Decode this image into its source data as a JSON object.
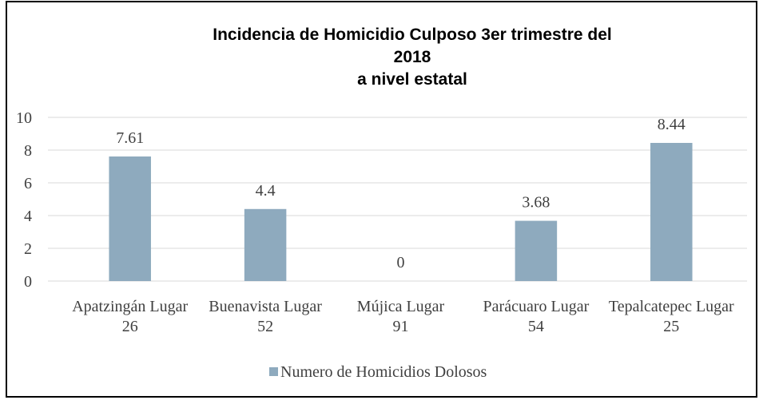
{
  "chart_data": {
    "type": "bar",
    "title": [
      "Incidencia de Homicidio Culposo 3er trimestre del",
      "2018",
      "a nivel estatal"
    ],
    "categories": [
      "Apatzingán Lugar 26",
      "Buenavista Lugar 52",
      "Mújica  Lugar 91",
      "Parácuaro Lugar 54",
      "Tepalcatepec Lugar 25"
    ],
    "series": [
      {
        "name": "Numero de Homicidios Dolosos",
        "color": "#8eaabe",
        "values": [
          7.61,
          4.4,
          0,
          3.68,
          8.44
        ]
      }
    ],
    "ylim": [
      0,
      10
    ],
    "yticks": [
      0,
      2,
      4,
      6,
      8,
      10
    ],
    "grid": true,
    "legend": "bottom"
  }
}
